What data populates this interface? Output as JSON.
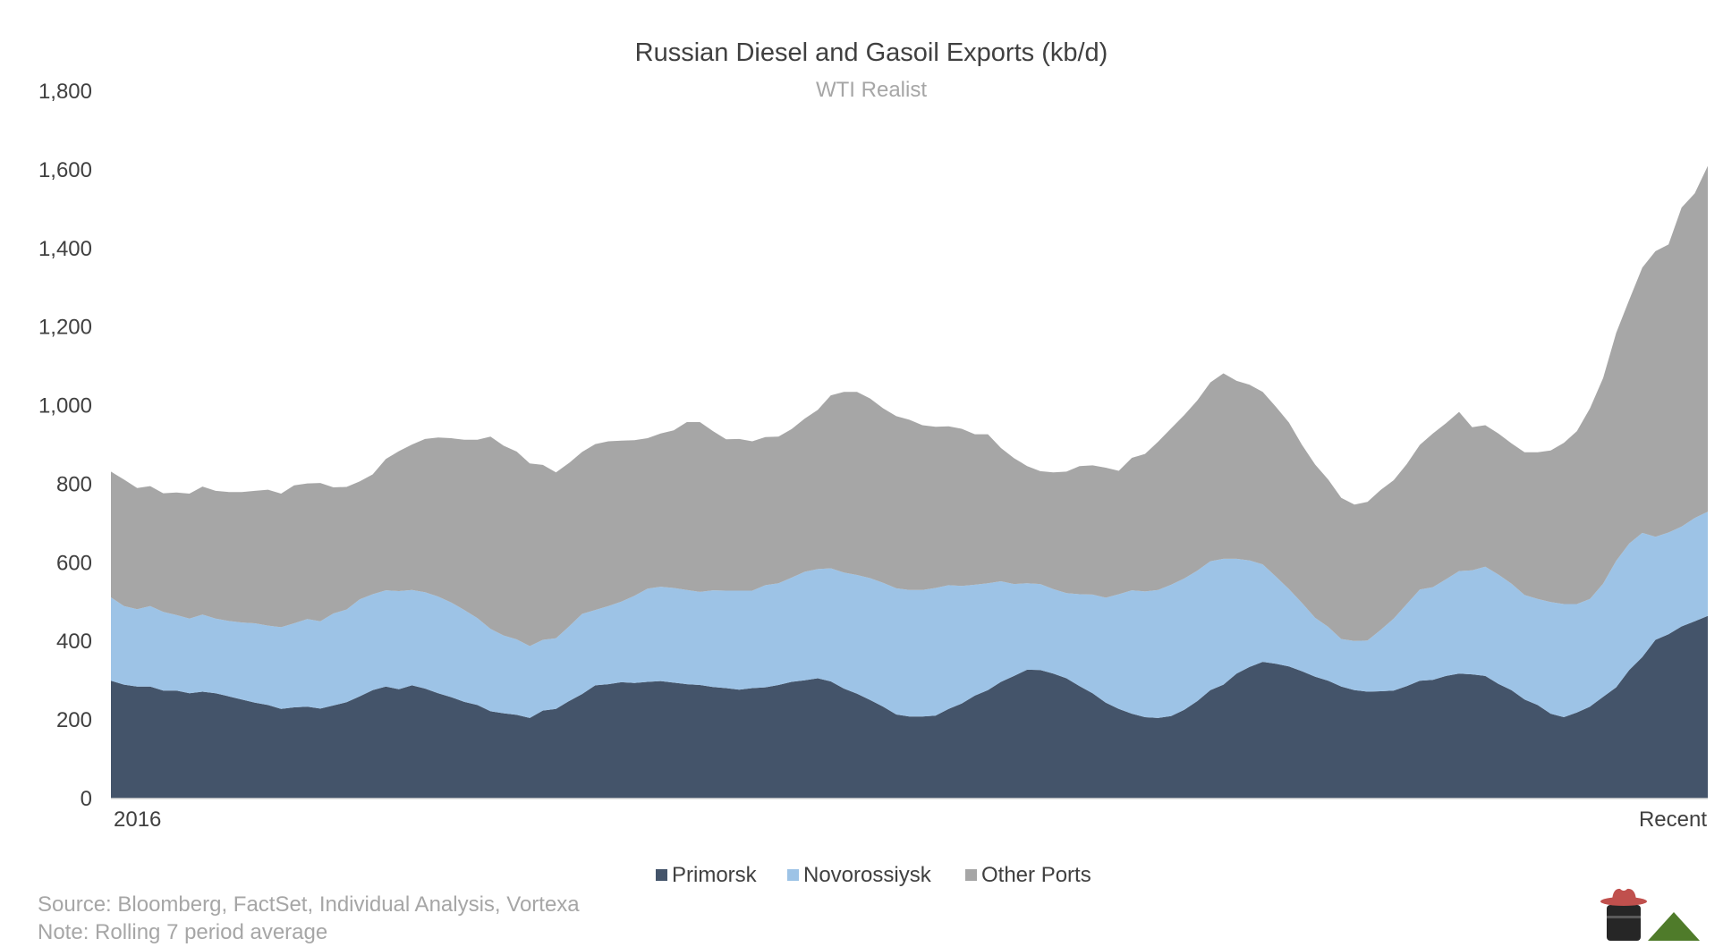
{
  "chart_data": {
    "type": "area",
    "stacked": true,
    "title": "Russian Diesel and Gasoil Exports (kb/d)",
    "subtitle": "WTI Realist",
    "xlabel": "",
    "ylabel": "",
    "ylim": [
      0,
      1800
    ],
    "yticks": [
      0,
      200,
      400,
      600,
      800,
      1000,
      1200,
      1400,
      1600,
      1800
    ],
    "ytick_labels": [
      "0",
      "200",
      "400",
      "600",
      "800",
      "1,000",
      "1,200",
      "1,400",
      "1,600",
      "1,800"
    ],
    "xtick_labels": [
      "2016",
      "Recent"
    ],
    "grid": false,
    "legend_position": "bottom",
    "colors": [
      "#44546a",
      "#9dc3e6",
      "#a6a6a6"
    ],
    "series": [
      {
        "name": "Primorsk",
        "color": "#44546a",
        "values": [
          300,
          290,
          285,
          285,
          275,
          275,
          268,
          272,
          268,
          260,
          252,
          244,
          238,
          228,
          232,
          234,
          229,
          237,
          245,
          260,
          276,
          285,
          278,
          288,
          280,
          268,
          258,
          246,
          238,
          222,
          217,
          213,
          205,
          224,
          228,
          248,
          266,
          288,
          291,
          296,
          294,
          297,
          299,
          295,
          291,
          289,
          284,
          281,
          277,
          281,
          283,
          289,
          297,
          301,
          306,
          298,
          280,
          267,
          251,
          234,
          214,
          209,
          209,
          211,
          228,
          242,
          262,
          276,
          297,
          312,
          328,
          327,
          318,
          306,
          286,
          268,
          244,
          228,
          216,
          207,
          205,
          210,
          226,
          248,
          276,
          290,
          318,
          335,
          348,
          343,
          336,
          324,
          310,
          300,
          285,
          276,
          272,
          273,
          275,
          286,
          300,
          302,
          312,
          318,
          316,
          312,
          292,
          276,
          252,
          238,
          216,
          207,
          219,
          234,
          259,
          283,
          327,
          360,
          404,
          418,
          438,
          451,
          465
        ]
      },
      {
        "name": "Novorossiysk",
        "color": "#9dc3e6",
        "values": [
          212,
          200,
          197,
          205,
          200,
          192,
          190,
          196,
          190,
          192,
          196,
          202,
          202,
          208,
          214,
          223,
          222,
          234,
          236,
          247,
          244,
          245,
          250,
          243,
          245,
          246,
          241,
          234,
          221,
          210,
          198,
          192,
          183,
          180,
          180,
          190,
          204,
          192,
          199,
          205,
          222,
          237,
          240,
          241,
          240,
          237,
          246,
          248,
          252,
          248,
          260,
          259,
          265,
          276,
          278,
          288,
          295,
          302,
          310,
          315,
          321,
          322,
          322,
          325,
          315,
          299,
          282,
          272,
          256,
          234,
          220,
          219,
          215,
          217,
          234,
          251,
          267,
          292,
          314,
          320,
          326,
          334,
          334,
          332,
          328,
          320,
          292,
          271,
          248,
          222,
          197,
          174,
          150,
          137,
          121,
          125,
          130,
          156,
          183,
          209,
          232,
          236,
          246,
          261,
          265,
          278,
          278,
          271,
          266,
          270,
          284,
          288,
          276,
          274,
          288,
          322,
          322,
          316,
          262,
          259,
          254,
          263,
          265
        ]
      },
      {
        "name": "Other Ports",
        "color": "#a6a6a6",
        "values": [
          320,
          322,
          308,
          305,
          302,
          312,
          318,
          326,
          325,
          328,
          332,
          337,
          346,
          340,
          351,
          345,
          352,
          321,
          312,
          300,
          305,
          334,
          356,
          370,
          390,
          405,
          418,
          433,
          454,
          489,
          483,
          478,
          465,
          445,
          422,
          416,
          412,
          422,
          419,
          410,
          396,
          383,
          390,
          401,
          427,
          432,
          405,
          385,
          386,
          380,
          377,
          373,
          378,
          390,
          405,
          440,
          460,
          466,
          457,
          444,
          438,
          433,
          419,
          410,
          404,
          400,
          383,
          379,
          339,
          320,
          298,
          287,
          297,
          309,
          326,
          329,
          331,
          314,
          337,
          350,
          377,
          398,
          416,
          433,
          455,
          472,
          453,
          447,
          439,
          432,
          424,
          402,
          390,
          375,
          359,
          347,
          353,
          356,
          352,
          356,
          368,
          391,
          397,
          405,
          364,
          360,
          359,
          357,
          363,
          373,
          386,
          410,
          440,
          485,
          523,
          580,
          620,
          675,
          727,
          733,
          812,
          826,
          880
        ]
      }
    ]
  },
  "legend": {
    "items": [
      {
        "label": "Primorsk",
        "color": "#44546a"
      },
      {
        "label": "Novorossiysk",
        "color": "#9dc3e6"
      },
      {
        "label": "Other Ports",
        "color": "#a6a6a6"
      }
    ]
  },
  "footer": {
    "source": "Source: Bloomberg, FactSet, Individual Analysis, Vortexa",
    "note": "Note: Rolling 7 period average"
  },
  "logo": {
    "icon": "cowboy-hat-barrel-logo",
    "triangle_color": "#4f7b2a",
    "barrel_color": "#262626",
    "hat_color": "#c0504d"
  }
}
